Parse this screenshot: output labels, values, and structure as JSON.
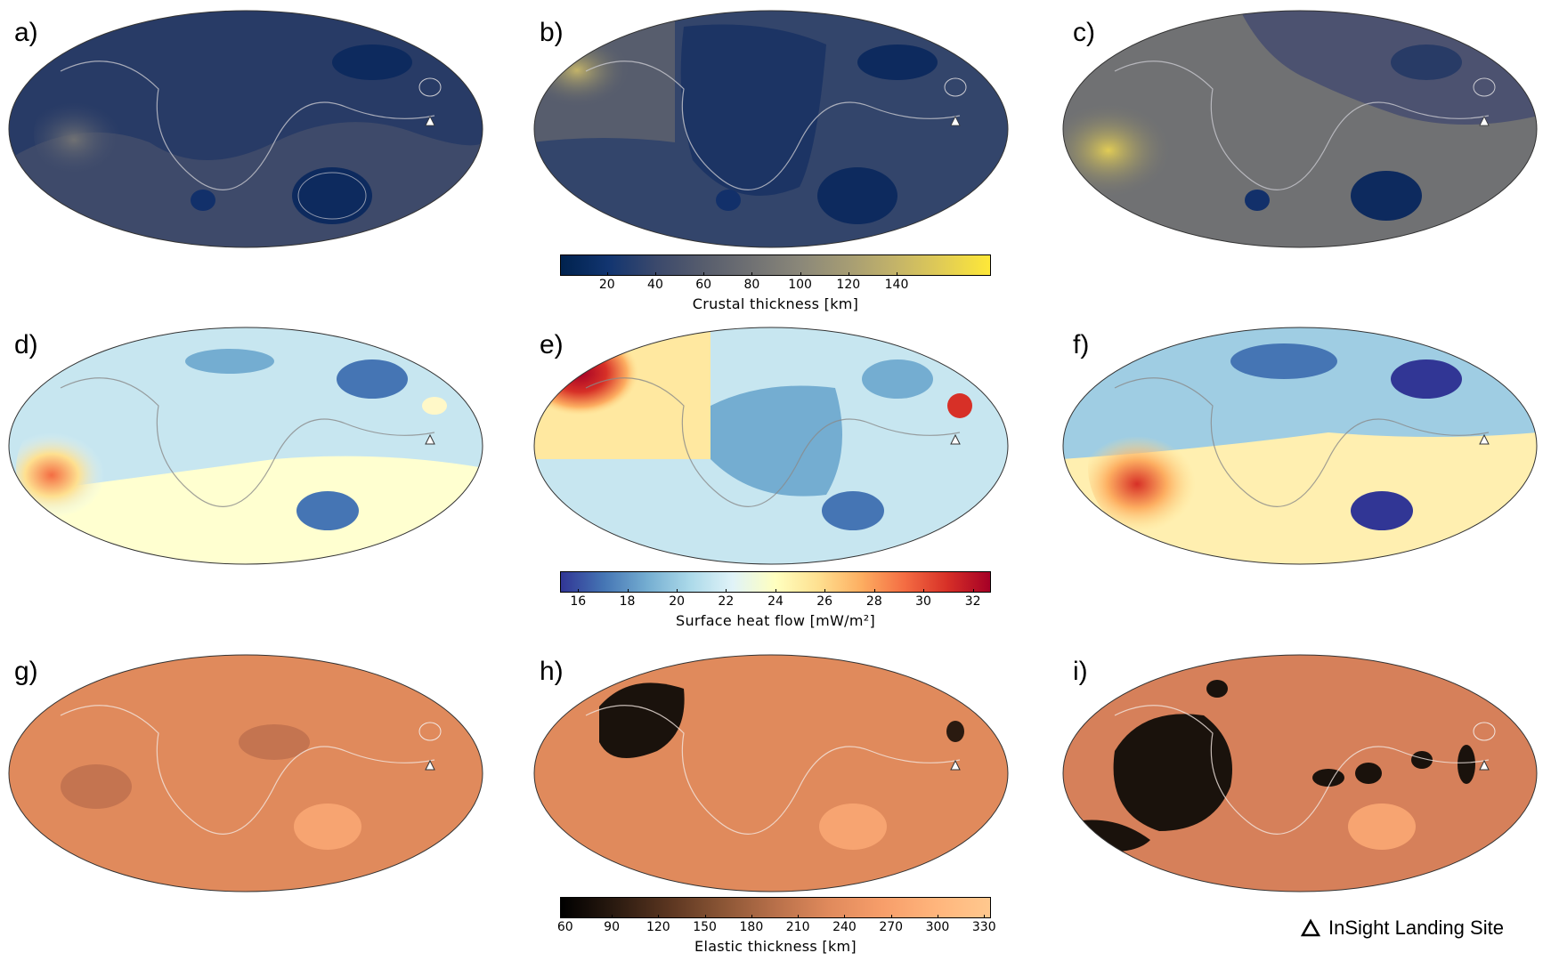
{
  "panels": {
    "a": "a)",
    "b": "b)",
    "c": "c)",
    "d": "d)",
    "e": "e)",
    "f": "f)",
    "g": "g)",
    "h": "h)",
    "i": "i)"
  },
  "colorbars": {
    "crustal": {
      "title": "Crustal thickness [km]",
      "ticks": [
        "20",
        "40",
        "60",
        "80",
        "100",
        "120",
        "140"
      ],
      "colors": [
        "#00224e",
        "#123570",
        "#3b496c",
        "#575d6d",
        "#707173",
        "#8a8779",
        "#a59c74",
        "#c3b369",
        "#e1cc55",
        "#fee838"
      ]
    },
    "heat": {
      "title": "Surface heat flow [mW/m²]",
      "ticks": [
        "16",
        "18",
        "20",
        "22",
        "24",
        "26",
        "28",
        "30",
        "32"
      ],
      "colors": [
        "#313695",
        "#4575b4",
        "#74add1",
        "#abd9e9",
        "#e0f3f8",
        "#ffffbf",
        "#fee090",
        "#fdae61",
        "#f46d43",
        "#d73027",
        "#a50026"
      ]
    },
    "elastic": {
      "title": "Elastic thickness [km]",
      "ticks": [
        "60",
        "90",
        "120",
        "150",
        "180",
        "210",
        "240",
        "270",
        "300",
        "330"
      ],
      "colors": [
        "#000000",
        "#2a1a10",
        "#5a3520",
        "#8a5535",
        "#b8704a",
        "#e08a5c",
        "#f79e6a",
        "#ffb57c",
        "#ffc88e"
      ]
    }
  },
  "legend": {
    "label": "InSight Landing Site"
  }
}
